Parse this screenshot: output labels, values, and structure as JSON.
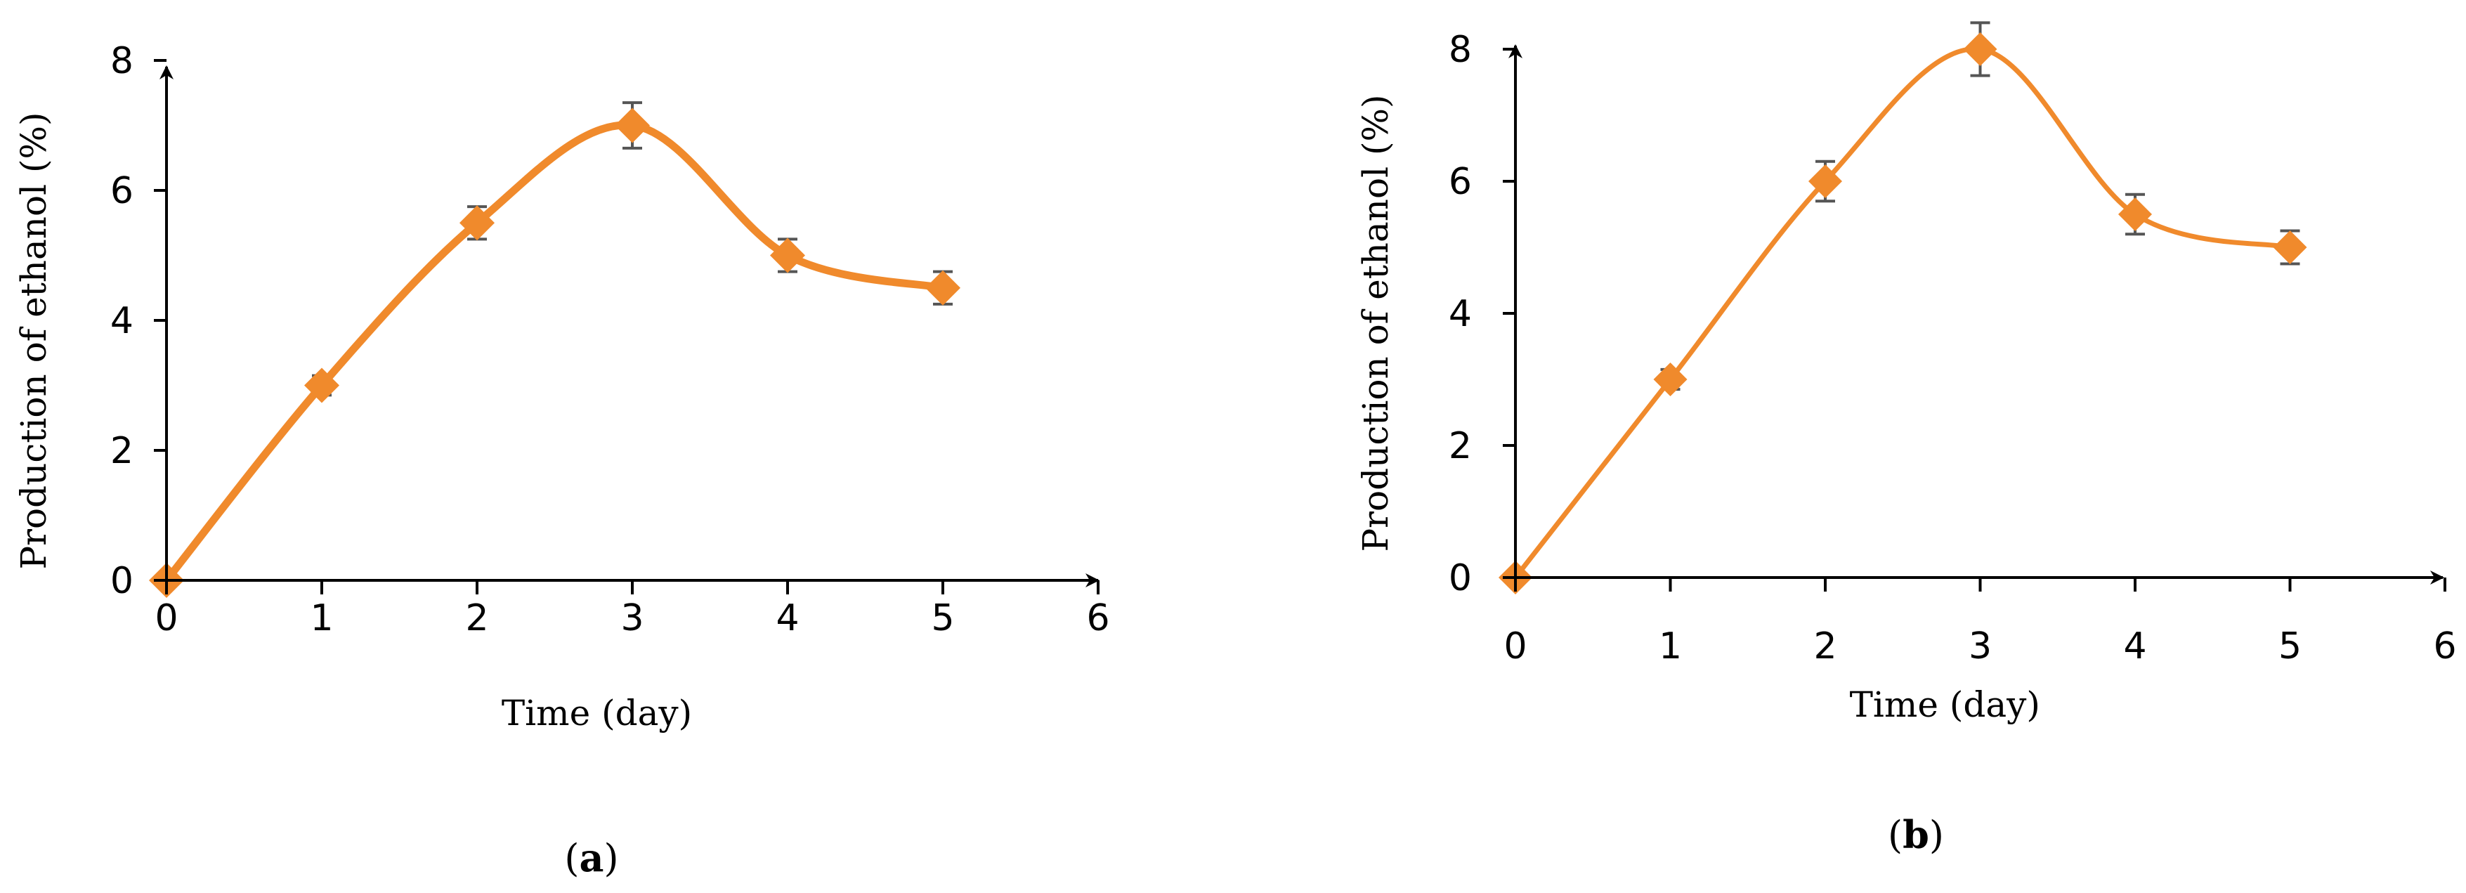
{
  "chart_data": [
    {
      "type": "line",
      "panel_label": "(a)",
      "panel_letter": "a",
      "xlabel": "Time (day)",
      "ylabel": "Production of ethanol (%)",
      "xlim": [
        0,
        6
      ],
      "ylim": [
        0,
        8
      ],
      "x_ticks": [
        0,
        1,
        2,
        3,
        4,
        5,
        6
      ],
      "y_ticks": [
        0,
        2,
        4,
        6,
        8
      ],
      "grid": false,
      "series": [
        {
          "x": [
            0,
            1,
            2,
            3,
            4,
            5
          ],
          "values": [
            0,
            3,
            5.5,
            7,
            5,
            4.5
          ],
          "error": [
            0,
            0.15,
            0.25,
            0.35,
            0.25,
            0.25
          ],
          "color": "#f08a2c",
          "marker": "diamond"
        }
      ]
    },
    {
      "type": "line",
      "panel_label": "(b)",
      "panel_letter": "b",
      "xlabel": "Time (day)",
      "ylabel": "Production of ethanol (%)",
      "xlim": [
        0,
        6
      ],
      "ylim": [
        0,
        8
      ],
      "x_ticks": [
        0,
        1,
        2,
        3,
        4,
        5,
        6
      ],
      "y_ticks": [
        0,
        2,
        4,
        6,
        8
      ],
      "grid": false,
      "series": [
        {
          "x": [
            0,
            1,
            2,
            3,
            4,
            5
          ],
          "values": [
            0,
            3,
            6,
            8,
            5.5,
            5
          ],
          "error": [
            0,
            0.15,
            0.3,
            0.4,
            0.3,
            0.25
          ],
          "color": "#f08a2c",
          "marker": "diamond"
        }
      ]
    }
  ]
}
